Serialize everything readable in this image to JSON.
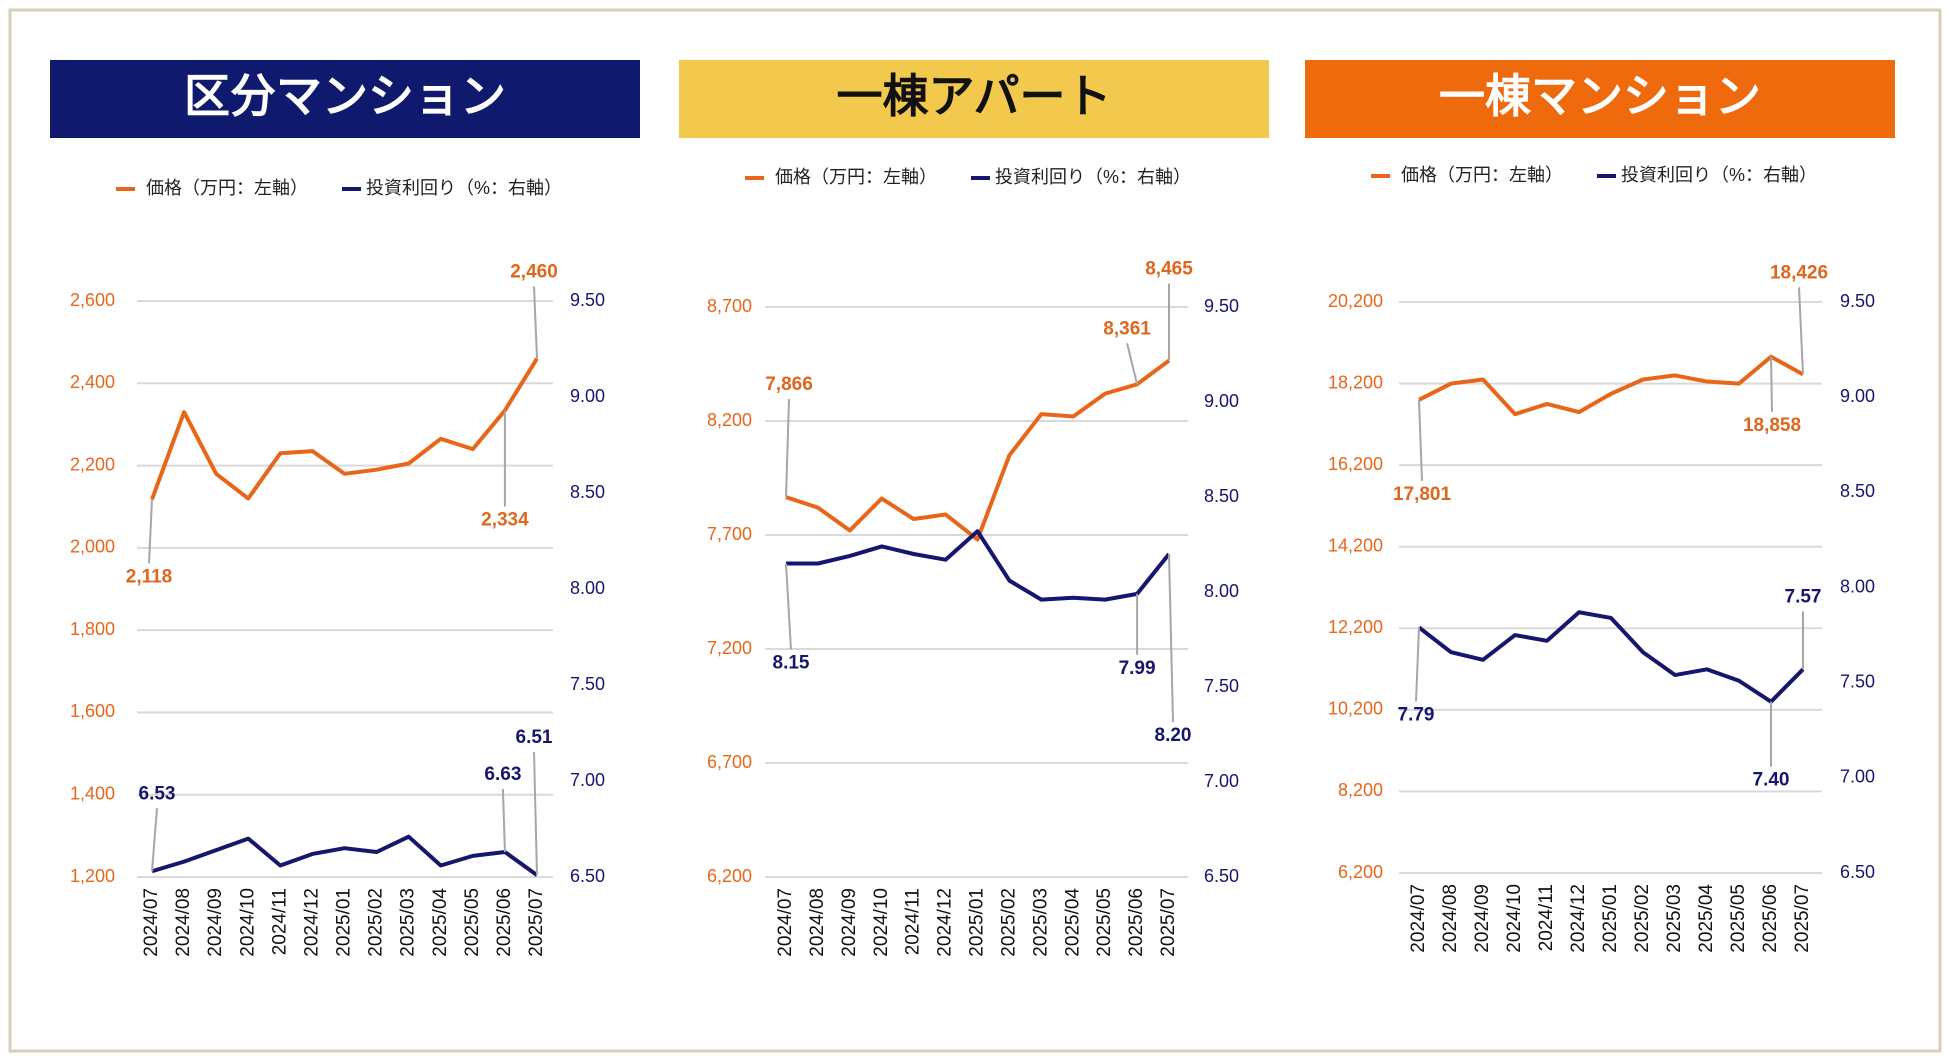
{
  "chart_data": [
    {
      "type": "line",
      "title": "区分マンション",
      "title_background": "#0f1a6e",
      "title_color": "#ffffff",
      "categories": [
        "2024/07",
        "2024/08",
        "2024/09",
        "2024/10",
        "2024/11",
        "2024/12",
        "2025/01",
        "2025/02",
        "2025/03",
        "2025/04",
        "2025/05",
        "2025/06",
        "2025/07"
      ],
      "series": [
        {
          "name": "価格（万円：左軸）",
          "color": "#e8661a",
          "axis": "y",
          "values": [
            2118,
            2330,
            2180,
            2120,
            2230,
            2235,
            2180,
            2190,
            2205,
            2265,
            2240,
            2334,
            2460
          ],
          "value_labels": [
            "2,118",
            null,
            null,
            null,
            null,
            null,
            null,
            null,
            null,
            null,
            null,
            "2,334",
            "2,460"
          ]
        },
        {
          "name": "投資利回り（%：右軸）",
          "color": "#16166e",
          "axis": "y2",
          "values": [
            6.53,
            6.58,
            6.64,
            6.7,
            6.56,
            6.62,
            6.65,
            6.63,
            6.71,
            6.56,
            6.61,
            6.63,
            6.51
          ],
          "value_labels": [
            "6.53",
            null,
            null,
            null,
            null,
            null,
            null,
            null,
            null,
            null,
            null,
            "6.63",
            "6.51"
          ]
        }
      ],
      "ylim": [
        1200,
        2600
      ],
      "yticks": [
        {
          "value": 1200,
          "label": "1,200"
        },
        {
          "value": 1400,
          "label": "1,400"
        },
        {
          "value": 1600,
          "label": "1,600"
        },
        {
          "value": 1800,
          "label": "1,800"
        },
        {
          "value": 2000,
          "label": "2,000"
        },
        {
          "value": 2200,
          "label": "2,200"
        },
        {
          "value": 2400,
          "label": "2,400"
        },
        {
          "value": 2600,
          "label": "2,600"
        }
      ],
      "y2lim": [
        6.5,
        9.5
      ],
      "y2ticks": [
        {
          "value": 6.5,
          "label": "6.50"
        },
        {
          "value": 7,
          "label": "7.00"
        },
        {
          "value": 7.5,
          "label": "7.50"
        },
        {
          "value": 8,
          "label": "8.00"
        },
        {
          "value": 8.5,
          "label": "8.50"
        },
        {
          "value": 9,
          "label": "9.00"
        },
        {
          "value": 9.5,
          "label": "9.50"
        }
      ],
      "grid": true
    },
    {
      "type": "line",
      "title": "一棟アパート",
      "title_background": "#f2c94c",
      "title_color": "#111111",
      "categories": [
        "2024/07",
        "2024/08",
        "2024/09",
        "2024/10",
        "2024/11",
        "2024/12",
        "2025/01",
        "2025/02",
        "2025/03",
        "2025/04",
        "2025/05",
        "2025/06",
        "2025/07"
      ],
      "series": [
        {
          "name": "価格（万円：左軸）",
          "color": "#e8661a",
          "axis": "y",
          "values": [
            7866,
            7820,
            7720,
            7860,
            7770,
            7790,
            7680,
            8050,
            8230,
            8220,
            8320,
            8361,
            8465
          ],
          "value_labels": [
            "7,866",
            null,
            null,
            null,
            null,
            null,
            null,
            null,
            null,
            null,
            null,
            "8,361",
            "8,465"
          ]
        },
        {
          "name": "投資利回り（%：右軸）",
          "color": "#16166e",
          "axis": "y2",
          "values": [
            8.15,
            8.15,
            8.19,
            8.24,
            8.2,
            8.17,
            8.32,
            8.06,
            7.96,
            7.97,
            7.96,
            7.99,
            8.2
          ],
          "value_labels": [
            "8.15",
            null,
            null,
            null,
            null,
            null,
            null,
            null,
            null,
            null,
            null,
            "7.99",
            "8.20"
          ]
        }
      ],
      "ylim": [
        6200,
        8700
      ],
      "yticks": [
        {
          "value": 6200,
          "label": "6,200"
        },
        {
          "value": 6700,
          "label": "6,700"
        },
        {
          "value": 7200,
          "label": "7,200"
        },
        {
          "value": 7700,
          "label": "7,700"
        },
        {
          "value": 8200,
          "label": "8,200"
        },
        {
          "value": 8700,
          "label": "8,700"
        }
      ],
      "y2lim": [
        6.5,
        9.5
      ],
      "y2ticks": [
        {
          "value": 6.5,
          "label": "6.50"
        },
        {
          "value": 7,
          "label": "7.00"
        },
        {
          "value": 7.5,
          "label": "7.50"
        },
        {
          "value": 8,
          "label": "8.00"
        },
        {
          "value": 8.5,
          "label": "8.50"
        },
        {
          "value": 9,
          "label": "9.00"
        },
        {
          "value": 9.5,
          "label": "9.50"
        }
      ],
      "grid": true
    },
    {
      "type": "line",
      "title": "一棟マンション",
      "title_background": "#ee6a0c",
      "title_color": "#ffffff",
      "categories": [
        "2024/07",
        "2024/08",
        "2024/09",
        "2024/10",
        "2024/11",
        "2024/12",
        "2025/01",
        "2025/02",
        "2025/03",
        "2025/04",
        "2025/05",
        "2025/06",
        "2025/07"
      ],
      "series": [
        {
          "name": "価格（万円：左軸）",
          "color": "#e8661a",
          "axis": "y",
          "values": [
            17801,
            18200,
            18300,
            17450,
            17700,
            17500,
            17950,
            18300,
            18400,
            18250,
            18200,
            18858,
            18426
          ],
          "value_labels": [
            "17,801",
            null,
            null,
            null,
            null,
            null,
            null,
            null,
            null,
            null,
            null,
            "18,858",
            "18,426"
          ]
        },
        {
          "name": "投資利回り（%：右軸）",
          "color": "#16166e",
          "axis": "y2",
          "values": [
            7.79,
            7.66,
            7.62,
            7.75,
            7.72,
            7.87,
            7.84,
            7.66,
            7.54,
            7.57,
            7.51,
            7.4,
            7.57
          ],
          "value_labels": [
            "7.79",
            null,
            null,
            null,
            null,
            null,
            null,
            null,
            null,
            null,
            null,
            "7.40",
            "7.57"
          ]
        }
      ],
      "ylim": [
        6200,
        20200
      ],
      "yticks": [
        {
          "value": 6200,
          "label": "6,200"
        },
        {
          "value": 8200,
          "label": "8,200"
        },
        {
          "value": 10200,
          "label": "10,200"
        },
        {
          "value": 12200,
          "label": "12,200"
        },
        {
          "value": 14200,
          "label": "14,200"
        },
        {
          "value": 16200,
          "label": "16,200"
        },
        {
          "value": 18200,
          "label": "18,200"
        },
        {
          "value": 20200,
          "label": "20,200"
        }
      ],
      "y2lim": [
        6.5,
        9.5
      ],
      "y2ticks": [
        {
          "value": 6.5,
          "label": "6.50"
        },
        {
          "value": 7,
          "label": "7.00"
        },
        {
          "value": 7.5,
          "label": "7.50"
        },
        {
          "value": 8,
          "label": "8.00"
        },
        {
          "value": 8.5,
          "label": "8.50"
        },
        {
          "value": 9,
          "label": "9.00"
        },
        {
          "value": 9.5,
          "label": "9.50"
        }
      ],
      "grid": true
    }
  ]
}
